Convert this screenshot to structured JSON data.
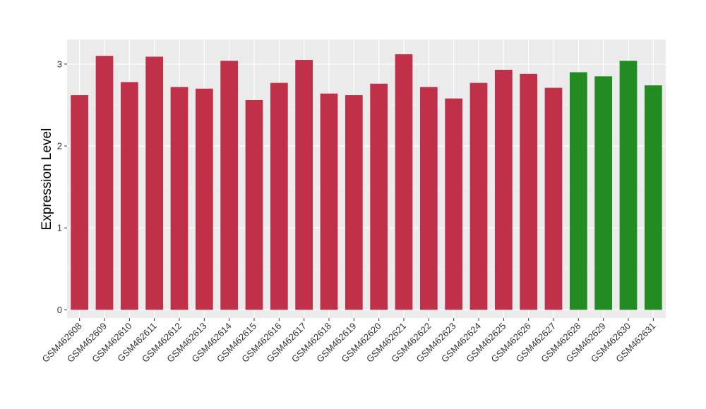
{
  "chart_data": {
    "type": "bar",
    "title": "",
    "xlabel": "",
    "ylabel": "Expression Level",
    "ylim": [
      -0.1,
      3.3
    ],
    "yticks": [
      0,
      1,
      2,
      3
    ],
    "grid": true,
    "legend": "none",
    "background_color": "#ebebeb",
    "categories": [
      "GSM462608",
      "GSM462609",
      "GSM462610",
      "GSM462611",
      "GSM462612",
      "GSM462613",
      "GSM462614",
      "GSM462615",
      "GSM462616",
      "GSM462617",
      "GSM462618",
      "GSM462619",
      "GSM462620",
      "GSM462621",
      "GSM462622",
      "GSM462623",
      "GSM462624",
      "GSM462625",
      "GSM462626",
      "GSM462627",
      "GSM462628",
      "GSM462629",
      "GSM462630",
      "GSM462631"
    ],
    "values": [
      2.62,
      3.1,
      2.78,
      3.09,
      2.72,
      2.7,
      3.04,
      2.56,
      2.77,
      3.05,
      2.64,
      2.62,
      2.76,
      3.12,
      2.72,
      2.58,
      2.77,
      2.93,
      2.88,
      2.71,
      2.9,
      2.85,
      3.04,
      2.74
    ],
    "colors": [
      "#c03048",
      "#c03048",
      "#c03048",
      "#c03048",
      "#c03048",
      "#c03048",
      "#c03048",
      "#c03048",
      "#c03048",
      "#c03048",
      "#c03048",
      "#c03048",
      "#c03048",
      "#c03048",
      "#c03048",
      "#c03048",
      "#c03048",
      "#c03048",
      "#c03048",
      "#c03048",
      "#228b22",
      "#228b22",
      "#228b22",
      "#228b22"
    ]
  }
}
